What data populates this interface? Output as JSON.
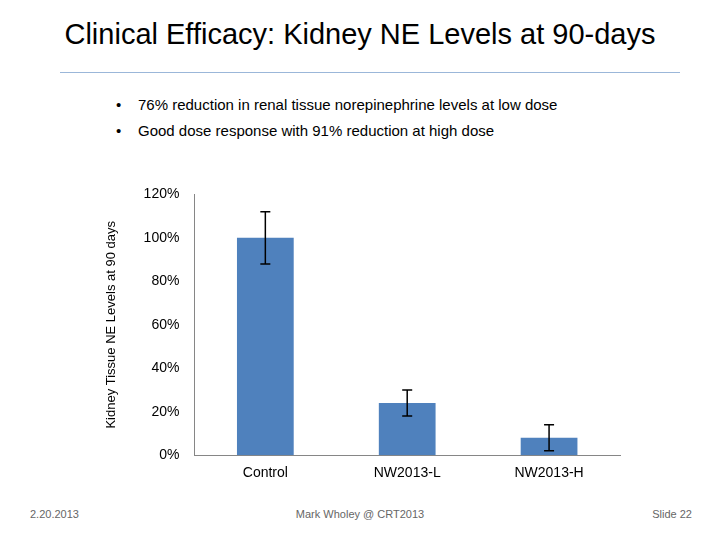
{
  "chart_data": {
    "type": "bar",
    "title": "Clinical Efficacy: Kidney NE Levels at 90-days",
    "y_label": "Kidney Tissue NE Levels at 90 days",
    "categories": [
      "Control",
      "NW2013-L",
      "NW2013-H"
    ],
    "values": [
      100,
      24,
      8
    ],
    "error": [
      12,
      6,
      6
    ],
    "color": "#4f81bd",
    "ylim": [
      0,
      120
    ],
    "yticks": [
      {
        "value": 0,
        "label": "0%"
      },
      {
        "value": 20,
        "label": "20%"
      },
      {
        "value": 40,
        "label": "40%"
      },
      {
        "value": 60,
        "label": "60%"
      },
      {
        "value": 80,
        "label": "80%"
      },
      {
        "value": 100,
        "label": "100%"
      },
      {
        "value": 120,
        "label": "120%"
      }
    ],
    "grid": false
  },
  "slide": {
    "bullets": [
      "76% reduction in renal tissue norepinephrine levels at low dose",
      "Good dose response with 91% reduction at high dose"
    ],
    "footer": {
      "date": "2.20.2013",
      "author": "Mark Wholey @ CRT2013",
      "slide": "Slide 22"
    }
  }
}
